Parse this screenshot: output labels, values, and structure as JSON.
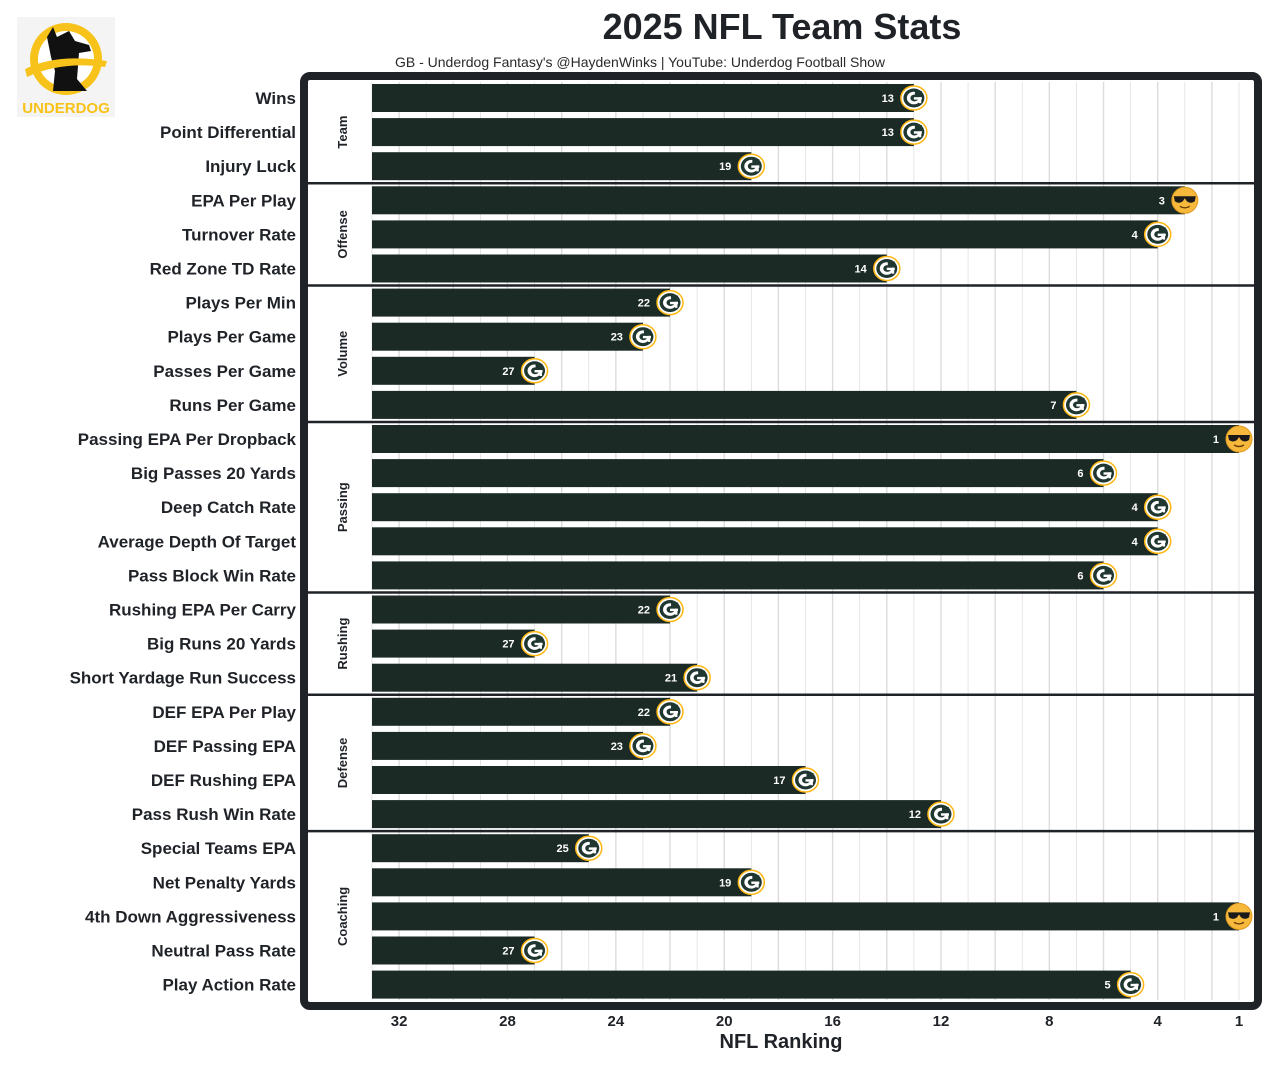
{
  "header": {
    "title": "2025 NFL Team Stats",
    "subtitle": "GB - Underdog Fantasy's @HaydenWinks | YouTube: Underdog Football Show",
    "logo_text": "UNDERDOG"
  },
  "colors": {
    "bar": "#1b2a24",
    "panel_border": "#1f2328",
    "grid": "#dcdcdc",
    "logo_yellow": "#f7c21a",
    "packers_green": "#203731",
    "packers_gold": "#ffb612"
  },
  "chart_data": {
    "type": "bar",
    "orientation": "horizontal",
    "xlabel": "NFL Ranking",
    "x_reversed": true,
    "xlim": [
      33,
      1
    ],
    "x_ticks": [
      32,
      28,
      24,
      20,
      16,
      12,
      8,
      4,
      1
    ],
    "grid": true,
    "groups": [
      {
        "name": "Team",
        "categories": [
          "Wins",
          "Point Differential",
          "Injury Luck"
        ],
        "values": [
          13,
          13,
          19
        ]
      },
      {
        "name": "Offense",
        "categories": [
          "EPA Per Play",
          "Turnover Rate",
          "Red Zone TD Rate"
        ],
        "values": [
          3,
          4,
          14
        ]
      },
      {
        "name": "Volume",
        "categories": [
          "Plays Per Min",
          "Plays Per Game",
          "Passes Per Game",
          "Runs Per Game"
        ],
        "values": [
          22,
          23,
          27,
          7
        ]
      },
      {
        "name": "Passing",
        "categories": [
          "Passing EPA Per Dropback",
          "Big Passes 20 Yards",
          "Deep Catch Rate",
          "Average Depth Of Target",
          "Pass Block Win Rate"
        ],
        "values": [
          1,
          6,
          4,
          4,
          6
        ]
      },
      {
        "name": "Rushing",
        "categories": [
          "Rushing EPA Per Carry",
          "Big Runs 20 Yards",
          "Short Yardage Run Success"
        ],
        "values": [
          22,
          27,
          21
        ]
      },
      {
        "name": "Defense",
        "categories": [
          "DEF EPA Per Play",
          "DEF Passing EPA",
          "DEF Rushing EPA",
          "Pass Rush Win Rate"
        ],
        "values": [
          22,
          23,
          17,
          12
        ]
      },
      {
        "name": "Coaching",
        "categories": [
          "Special Teams EPA",
          "Net Penalty Yards",
          "4th Down Aggressiveness",
          "Neutral Pass Rate",
          "Play Action Rate"
        ],
        "values": [
          25,
          19,
          1,
          27,
          5
        ]
      }
    ],
    "top3_marker": "sunglasses-emoji",
    "default_marker": "packers-logo"
  }
}
